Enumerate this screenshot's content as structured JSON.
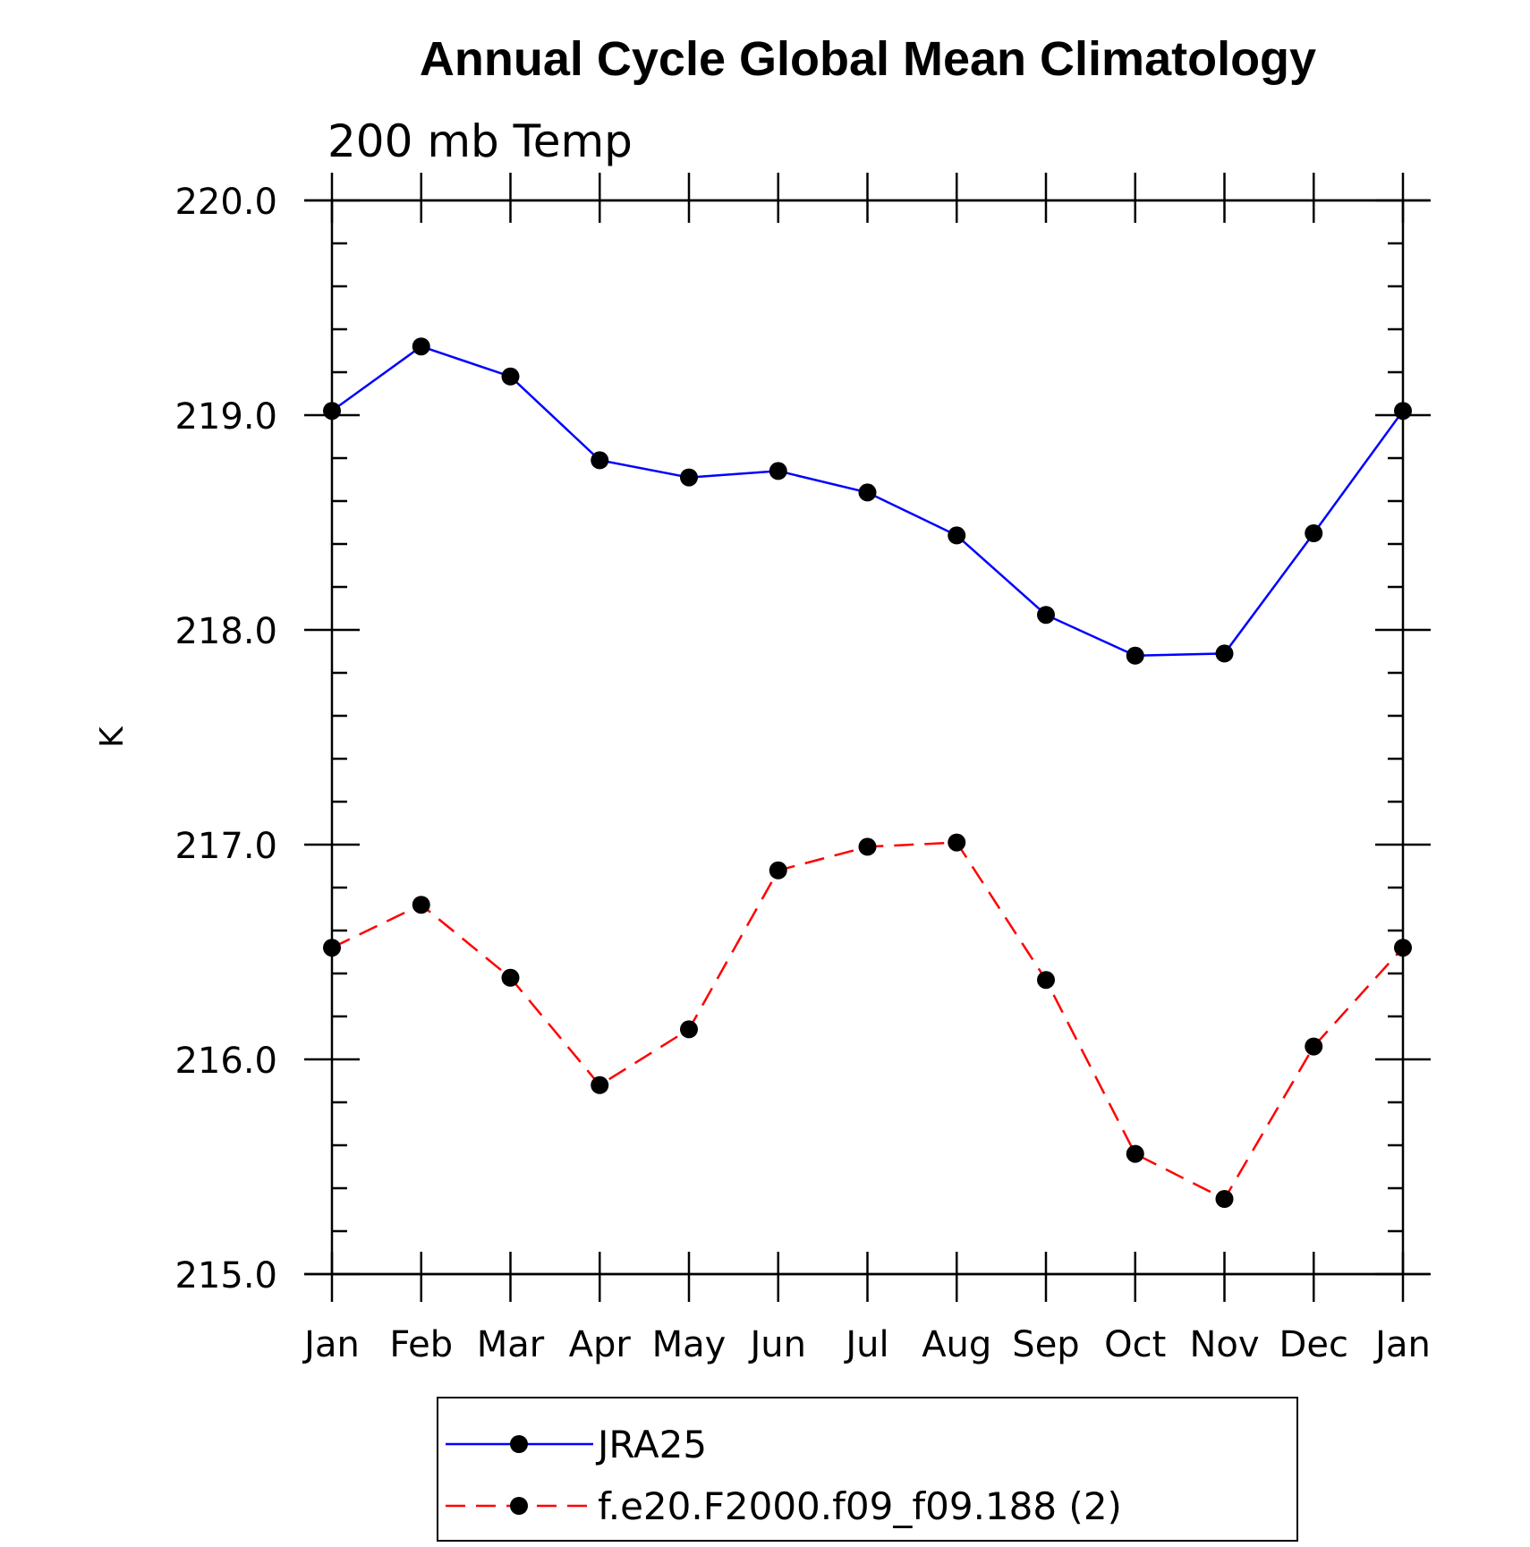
{
  "chart_data": {
    "type": "line",
    "title": "Annual Cycle Global Mean Climatology",
    "subtitle": "200 mb Temp",
    "xlabel": "",
    "ylabel": "K",
    "categories": [
      "Jan",
      "Feb",
      "Mar",
      "Apr",
      "May",
      "Jun",
      "Jul",
      "Aug",
      "Sep",
      "Oct",
      "Nov",
      "Dec",
      "Jan"
    ],
    "ylim": [
      215.0,
      220.0
    ],
    "yticks": [
      "215.0",
      "216.0",
      "217.0",
      "218.0",
      "219.0",
      "220.0"
    ],
    "legend_position": "bottom",
    "series": [
      {
        "name": "JRA25",
        "color": "#0000ff",
        "line_style": "solid",
        "marker": "filled-circle",
        "values": [
          219.02,
          219.32,
          219.18,
          218.79,
          218.71,
          218.74,
          218.64,
          218.44,
          218.07,
          217.88,
          217.89,
          218.45,
          219.02
        ]
      },
      {
        "name": "f.e20.F2000.f09_f09.188 (2)",
        "color": "#ff0000",
        "line_style": "dashed",
        "marker": "filled-circle",
        "values": [
          216.52,
          216.72,
          216.38,
          215.88,
          216.14,
          216.88,
          216.99,
          217.01,
          216.37,
          215.56,
          215.35,
          216.06,
          216.52
        ]
      }
    ]
  }
}
